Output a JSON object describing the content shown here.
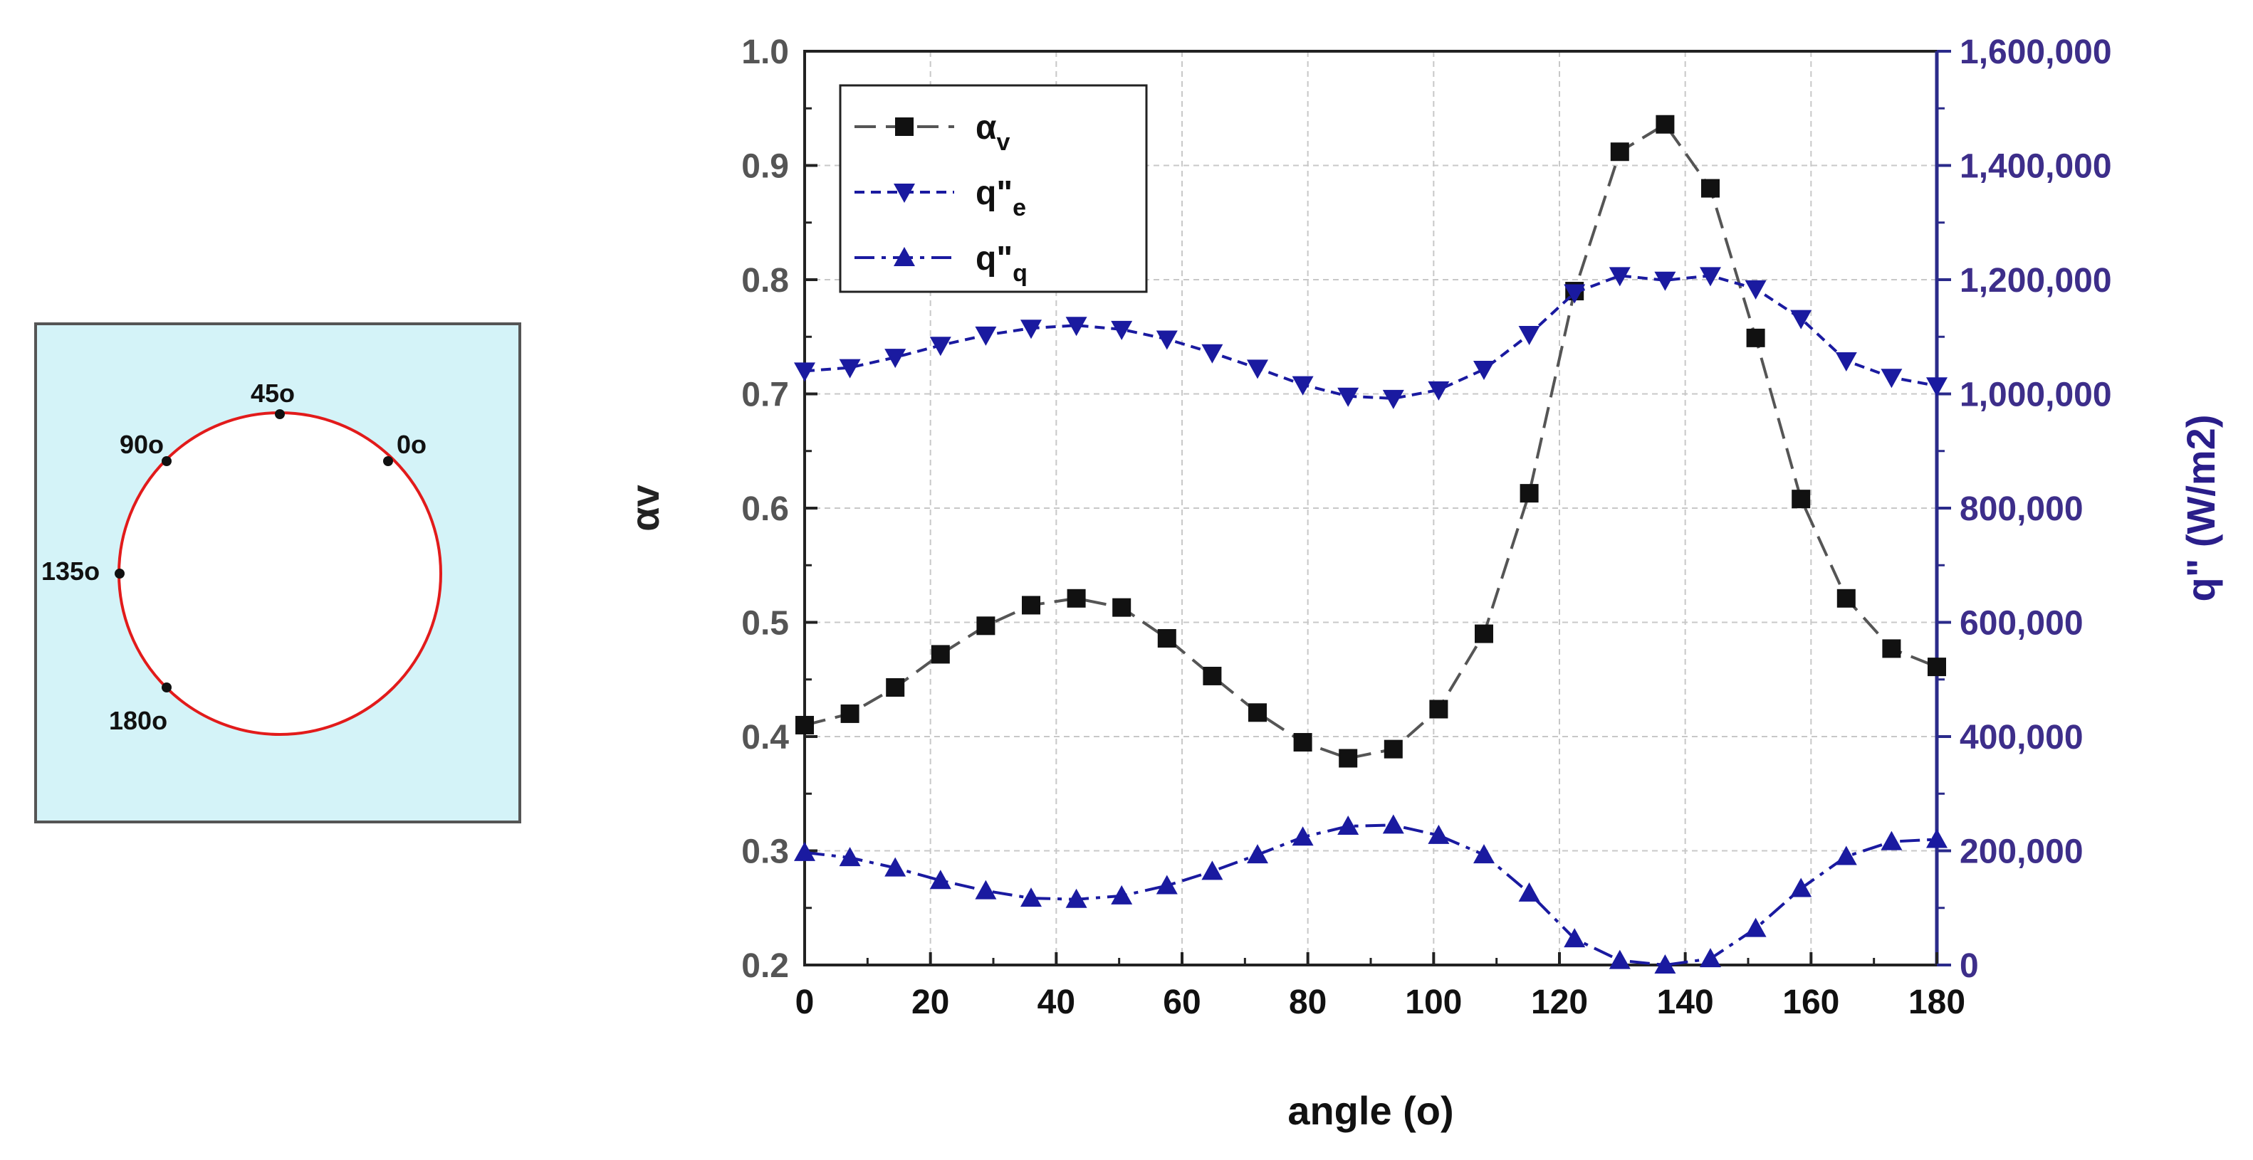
{
  "inset": {
    "background": "#d4f3f8",
    "circle_color": "#e21b1b",
    "labels": [
      "45o",
      "90o",
      "0o",
      "135o",
      "180o"
    ]
  },
  "chart_data": {
    "type": "line",
    "xlabel": "angle (o)",
    "ylabel_left": "αv",
    "ylabel_right": "q\" (W/m2)",
    "xlim": [
      0,
      180
    ],
    "ylim_left": [
      0.2,
      1.0
    ],
    "ylim_right": [
      0,
      1600000
    ],
    "x_ticks": [
      "0",
      "20",
      "40",
      "60",
      "80",
      "100",
      "120",
      "140",
      "160",
      "180"
    ],
    "y_left_ticks": [
      "0.2",
      "0.3",
      "0.4",
      "0.5",
      "0.6",
      "0.7",
      "0.8",
      "0.9",
      "1.0"
    ],
    "y_right_ticks": [
      "0",
      "200,000",
      "400,000",
      "600,000",
      "800,000",
      "1,000,000",
      "1,200,000",
      "1,400,000",
      "1,600,000"
    ],
    "x": [
      0,
      7.2,
      14.4,
      21.6,
      28.8,
      36,
      43.2,
      50.4,
      57.6,
      64.8,
      72,
      79.2,
      86.4,
      93.6,
      100.8,
      108,
      115.2,
      122.4,
      129.6,
      136.8,
      144,
      151.2,
      158.4,
      165.6,
      172.8,
      180
    ],
    "series": [
      {
        "name": "αv",
        "legend_main": "α",
        "legend_sub": "v",
        "axis": "left",
        "color": "#555555",
        "marker": "square",
        "values": [
          0.41,
          0.42,
          0.443,
          0.472,
          0.497,
          0.515,
          0.521,
          0.513,
          0.486,
          0.453,
          0.421,
          0.395,
          0.381,
          0.389,
          0.424,
          0.49,
          0.613,
          0.79,
          0.912,
          0.936,
          0.88,
          0.749,
          0.608,
          0.521,
          0.477,
          0.461
        ]
      },
      {
        "name": "q\"e",
        "legend_main": "q\"",
        "legend_sub": "e",
        "axis": "right",
        "color": "#1a1aa0",
        "marker": "triangle-down",
        "values": [
          1040000,
          1046000,
          1064000,
          1085000,
          1103000,
          1115000,
          1120000,
          1113000,
          1096000,
          1072000,
          1045000,
          1016000,
          996000,
          992000,
          1007000,
          1043000,
          1104000,
          1177000,
          1207000,
          1199000,
          1207000,
          1184000,
          1132000,
          1058000,
          1029000,
          1014000
        ]
      },
      {
        "name": "q\"q",
        "legend_main": "q\"",
        "legend_sub": "q",
        "axis": "right",
        "color": "#1a1aa0",
        "marker": "triangle-up",
        "values": [
          197000,
          188000,
          170000,
          148000,
          130000,
          117000,
          115000,
          121000,
          139000,
          164000,
          193000,
          224000,
          243000,
          245000,
          227000,
          193000,
          126000,
          46000,
          8000,
          0,
          11000,
          64000,
          134000,
          190000,
          216000,
          220000
        ]
      }
    ]
  }
}
